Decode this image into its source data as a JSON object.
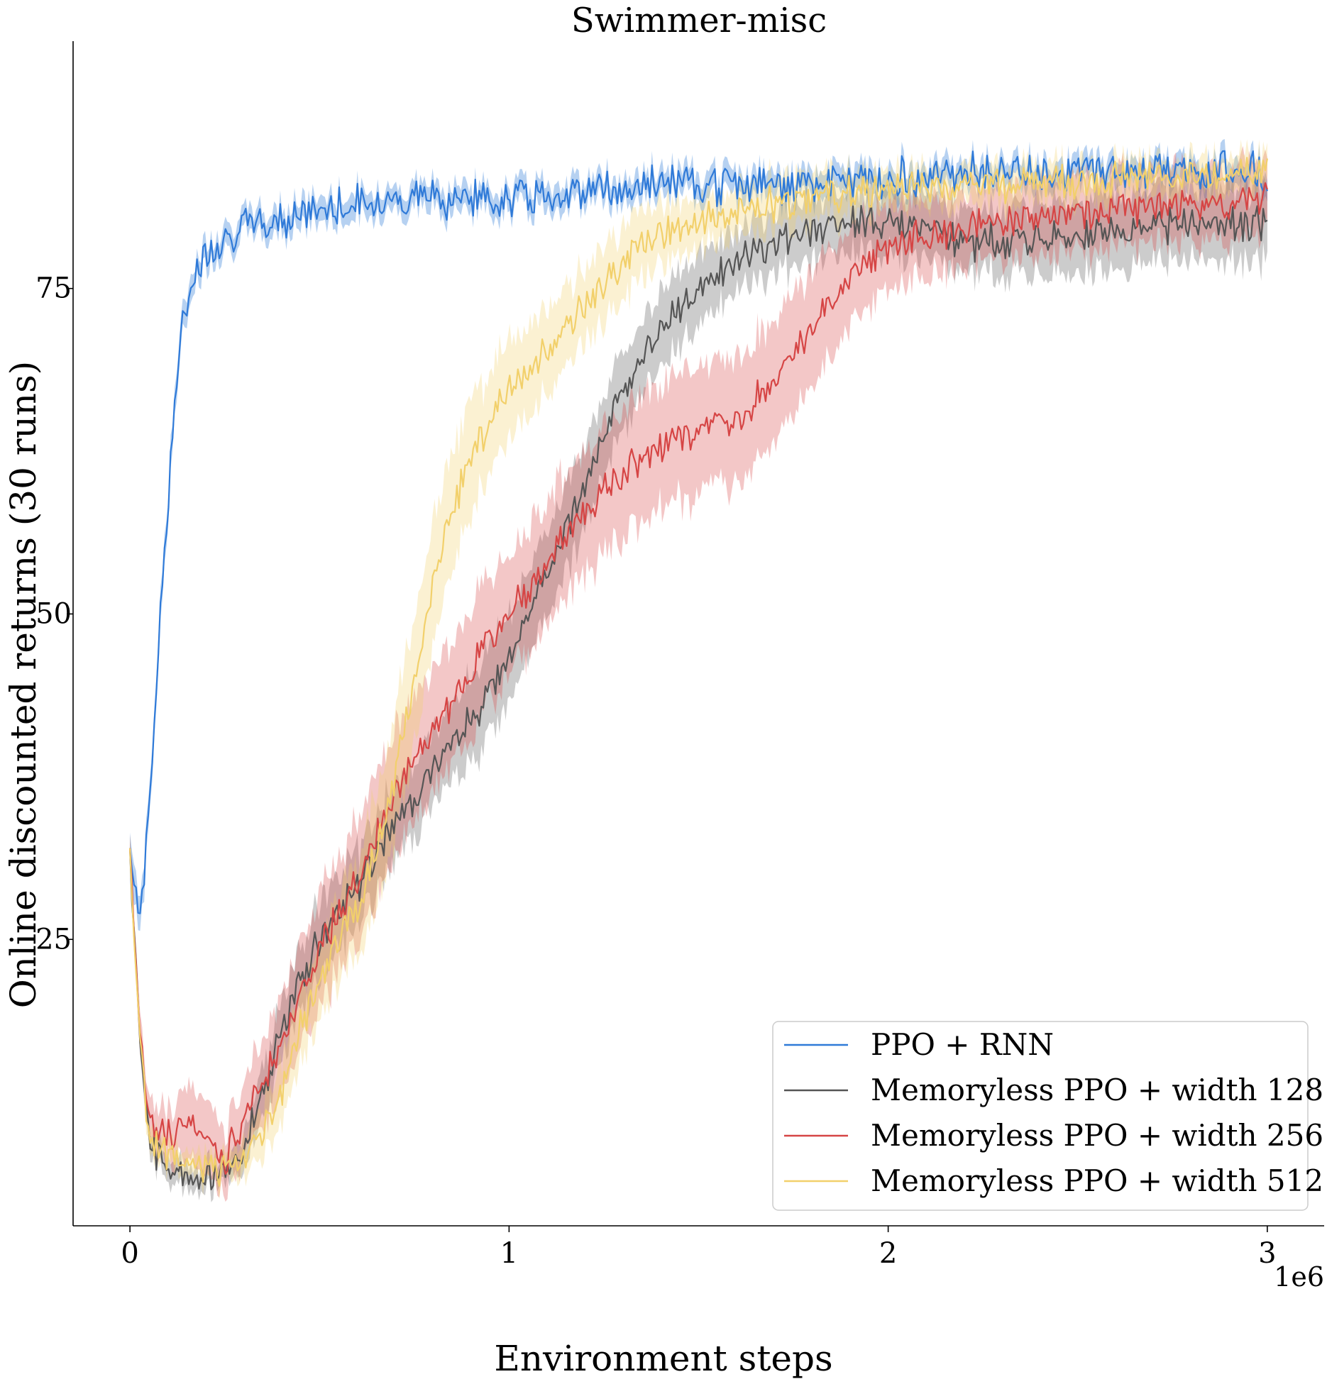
{
  "chart_data": {
    "type": "line",
    "title": "Swimmer-misc",
    "xlabel": "Environment steps",
    "ylabel": "Online discounted returns (30 runs)",
    "x_offset_label": "1e6",
    "xlim": [
      -0.15,
      3.15
    ],
    "ylim": [
      3,
      94
    ],
    "x_ticks": [
      0,
      1,
      2,
      3
    ],
    "x_tick_labels": [
      "0",
      "1",
      "2",
      "3"
    ],
    "y_ticks": [
      25,
      50,
      75
    ],
    "y_tick_labels": [
      "25",
      "50",
      "75"
    ],
    "grid": false,
    "legend_position": "lower-right",
    "shaded_band": "confidence interval around mean",
    "series": [
      {
        "name": "PPO + RNN",
        "color": "#2f7ad8",
        "x": [
          0,
          0.02,
          0.04,
          0.06,
          0.08,
          0.1,
          0.12,
          0.14,
          0.16,
          0.2,
          0.25,
          0.3,
          0.4,
          0.5,
          0.6,
          0.7,
          0.8,
          0.9,
          1.0,
          1.2,
          1.4,
          1.6,
          1.8,
          2.0,
          2.2,
          2.4,
          2.6,
          2.8,
          3.0
        ],
        "y": [
          32,
          27,
          30,
          40,
          50,
          59,
          67,
          72,
          75,
          78,
          79,
          79.5,
          80.5,
          81,
          81.5,
          82,
          82,
          82,
          82,
          82.5,
          83,
          83,
          83,
          83.5,
          84,
          84,
          84,
          84,
          84
        ],
        "band": [
          1.5,
          1.5,
          1.2,
          1.2,
          1.2,
          1.2,
          1.2,
          1,
          1,
          1,
          1,
          1,
          1,
          1,
          1,
          1,
          1,
          1,
          1,
          1,
          1,
          1,
          1,
          1,
          1,
          1,
          1,
          1,
          1
        ]
      },
      {
        "name": "Memoryless PPO + width 128",
        "color": "#555555",
        "x": [
          0,
          0.02,
          0.04,
          0.06,
          0.08,
          0.1,
          0.15,
          0.2,
          0.25,
          0.3,
          0.35,
          0.4,
          0.45,
          0.5,
          0.6,
          0.7,
          0.8,
          0.9,
          1.0,
          1.1,
          1.2,
          1.3,
          1.4,
          1.5,
          1.6,
          1.7,
          1.8,
          1.9,
          2.0,
          2.2,
          2.4,
          2.6,
          2.8,
          3.0
        ],
        "y": [
          32,
          20,
          12,
          9,
          8,
          7.5,
          7,
          6.5,
          7,
          9,
          13,
          18,
          22,
          25,
          29,
          34,
          38,
          42,
          46,
          53,
          60,
          67,
          72,
          75,
          77,
          78.5,
          79.5,
          80,
          80,
          78.5,
          79,
          79.5,
          80,
          80
        ],
        "band": [
          1,
          1,
          1,
          1,
          1,
          1,
          1,
          1,
          1,
          1.5,
          2,
          2.5,
          2.5,
          3,
          3,
          3,
          3,
          3.5,
          3.5,
          3.5,
          3.5,
          3,
          3,
          3,
          2.5,
          2.5,
          2.5,
          2.5,
          2.5,
          2.5,
          3,
          3,
          3,
          3
        ]
      },
      {
        "name": "Memoryless PPO + width 256",
        "color": "#d64545",
        "x": [
          0,
          0.02,
          0.04,
          0.06,
          0.08,
          0.1,
          0.15,
          0.2,
          0.25,
          0.3,
          0.35,
          0.4,
          0.45,
          0.5,
          0.6,
          0.7,
          0.8,
          0.9,
          1.0,
          1.1,
          1.2,
          1.3,
          1.4,
          1.5,
          1.6,
          1.7,
          1.8,
          1.9,
          2.0,
          2.2,
          2.4,
          2.6,
          2.8,
          3.0
        ],
        "y": [
          32,
          21,
          13,
          10.5,
          10,
          10,
          11,
          10,
          8,
          11,
          14,
          17,
          21,
          24,
          30,
          36,
          41,
          46,
          50,
          54,
          58,
          61,
          63,
          64,
          65,
          68,
          72,
          76,
          78,
          80,
          80.5,
          81,
          81.5,
          82
        ],
        "band": [
          1,
          1.5,
          1.5,
          2,
          2,
          2,
          3,
          3,
          2.5,
          3,
          3.5,
          4,
          4.5,
          4.5,
          5,
          5,
          5,
          5,
          5,
          5,
          5,
          5,
          5,
          5,
          5,
          5,
          4.5,
          4,
          3.5,
          3,
          3,
          3,
          3,
          3
        ]
      },
      {
        "name": "Memoryless PPO + width 512",
        "color": "#f2d06b",
        "x": [
          0,
          0.02,
          0.04,
          0.06,
          0.08,
          0.1,
          0.15,
          0.2,
          0.25,
          0.3,
          0.35,
          0.4,
          0.45,
          0.5,
          0.55,
          0.6,
          0.65,
          0.7,
          0.75,
          0.8,
          0.85,
          0.9,
          0.95,
          1.0,
          1.1,
          1.2,
          1.3,
          1.4,
          1.5,
          1.6,
          1.7,
          1.8,
          2.0,
          2.2,
          2.4,
          2.6,
          2.8,
          3.0
        ],
        "y": [
          32,
          20,
          12,
          9.5,
          9,
          8.5,
          8,
          7.5,
          7.5,
          8,
          10,
          13,
          18,
          22,
          25,
          27,
          32,
          38,
          45,
          52,
          58,
          62,
          65,
          67,
          70,
          74,
          77,
          79,
          80,
          81,
          81.5,
          82,
          82.5,
          83,
          83,
          83.5,
          83.5,
          84
        ],
        "band": [
          1,
          1,
          1,
          1,
          1,
          1,
          1,
          1,
          1,
          1.5,
          2,
          2.5,
          3,
          3,
          3.5,
          4,
          4.5,
          5,
          5,
          5,
          5,
          4.5,
          4,
          4,
          3.5,
          3,
          3,
          2.5,
          2,
          2,
          2,
          2,
          1.5,
          1.5,
          1.5,
          1.5,
          1.5,
          1.5
        ]
      }
    ]
  }
}
